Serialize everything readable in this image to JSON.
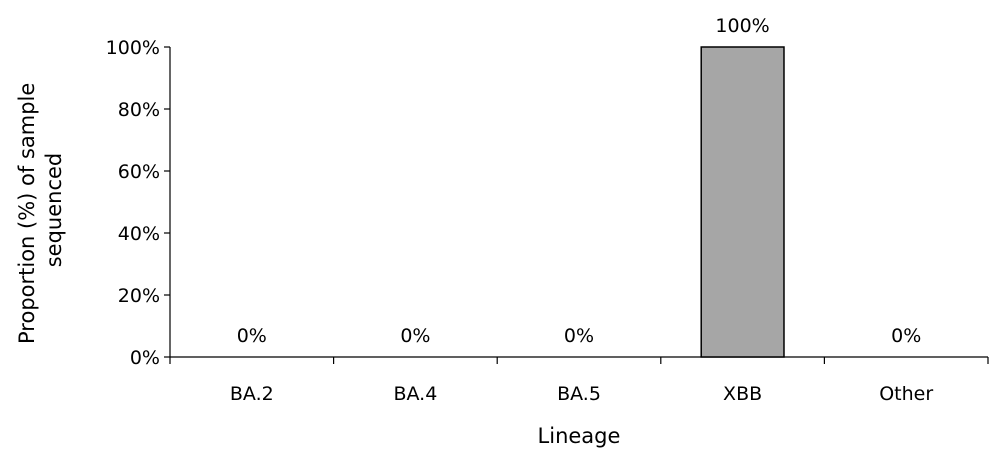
{
  "chart_data": {
    "type": "bar",
    "title": "",
    "categories": [
      "BA.2",
      "BA.4",
      "BA.5",
      "XBB",
      "Other"
    ],
    "values": [
      0,
      0,
      0,
      100,
      0
    ],
    "data_labels": [
      "0%",
      "0%",
      "0%",
      "100%",
      "0%"
    ],
    "xlabel": "Lineage",
    "ylabel_lines": [
      "Proportion (%) of sample",
      "sequenced"
    ],
    "ylim": [
      0,
      100
    ],
    "yticks": [
      0,
      20,
      40,
      60,
      80,
      100
    ],
    "ytick_labels": [
      "0%",
      "20%",
      "40%",
      "60%",
      "80%",
      "100%"
    ],
    "grid": false,
    "legend": "none",
    "bar_color": "#a6a6a6",
    "bar_edge_color": "#000000"
  }
}
